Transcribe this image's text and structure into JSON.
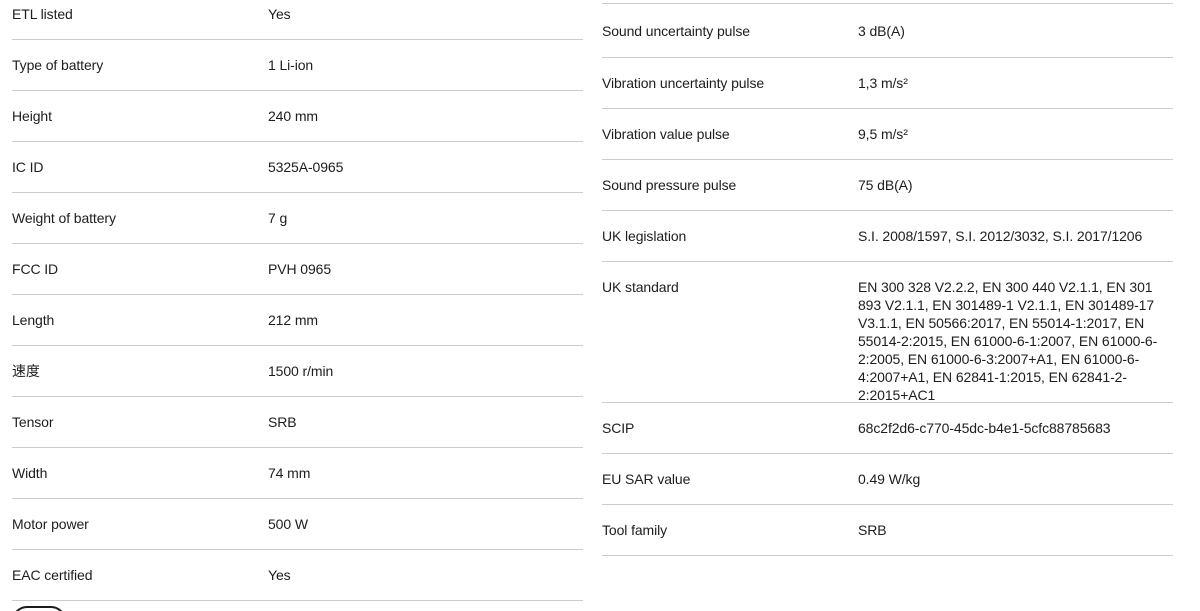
{
  "theme": {
    "background": "#ffffff",
    "text_color": "#1d1d1b",
    "divider_color": "#cccccc"
  },
  "spec_tables": {
    "left": {
      "rows": [
        {
          "label": "ETL listed",
          "value": "Yes"
        },
        {
          "label": "Type of battery",
          "value": "1 Li-ion"
        },
        {
          "label": "Height",
          "value": "240 mm"
        },
        {
          "label": "IC ID",
          "value": "5325A-0965"
        },
        {
          "label": "Weight of battery",
          "value": "7 g"
        },
        {
          "label": "FCC ID",
          "value": "PVH 0965"
        },
        {
          "label": "Length",
          "value": "212 mm"
        },
        {
          "label": "速度",
          "value": "1500 r/min"
        },
        {
          "label": "Tensor",
          "value": "SRB"
        },
        {
          "label": "Width",
          "value": "74 mm"
        },
        {
          "label": "Motor power",
          "value": "500 W"
        },
        {
          "label": "EAC certified",
          "value": "Yes"
        }
      ]
    },
    "right": {
      "rows": [
        {
          "label": "Sound uncertainty pulse",
          "value": "3 dB(A)"
        },
        {
          "label": "Vibration uncertainty pulse",
          "value": "1,3 m/s²"
        },
        {
          "label": "Vibration value pulse",
          "value": "9,5 m/s²"
        },
        {
          "label": "Sound pressure pulse",
          "value": "75 dB(A)"
        },
        {
          "label": "UK legislation",
          "value": "S.I. 2008/1597, S.I. 2012/3032, S.I. 2017/1206"
        },
        {
          "label": "UK standard",
          "value": "EN 300 328 V2.2.2, EN 300 440 V2.1.1, EN 301 893 V2.1.1, EN 301489-1 V2.1.1, EN 301489-17 V3.1.1, EN 50566:2017, EN 55014-1:2017, EN 55014-2:2015, EN 61000-6-1:2007, EN 61000-6-2:2005, EN 61000-6-3:2007+A1, EN 61000-6-4:2007+A1, EN 62841-1:2015, EN 62841-2-2:2015+AC1",
          "tall": true
        },
        {
          "label": "SCIP",
          "value": "68c2f2d6-c770-45dc-b4e1-5cfc88785683"
        },
        {
          "label": "EU SAR value",
          "value": "0.49 W/kg"
        },
        {
          "label": "Tool family",
          "value": "SRB"
        }
      ]
    }
  },
  "partial_button": {
    "label": ""
  }
}
